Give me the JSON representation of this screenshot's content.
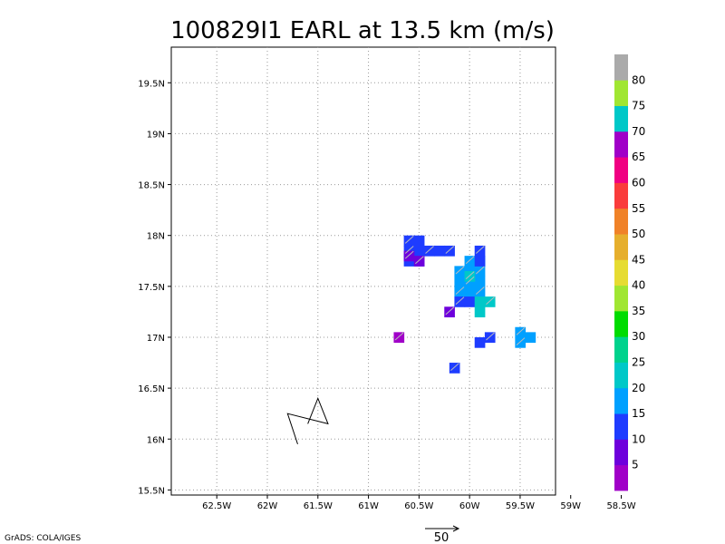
{
  "chart_data": {
    "type": "heatmap",
    "title": "100829I1 EARL at 13.5 km (m/s)",
    "x_ticks": [
      "62.5W",
      "62W",
      "61.5W",
      "61W",
      "60.5W",
      "60W",
      "59.5W",
      "59W",
      "58.5W"
    ],
    "y_ticks": [
      "19.5N",
      "19N",
      "18.5N",
      "18N",
      "17.5N",
      "17N",
      "16.5N",
      "16N",
      "15.5N"
    ],
    "x_values": [
      -62.5,
      -62,
      -61.5,
      -61,
      -60.5,
      -60,
      -59.5,
      -59,
      -58.5
    ],
    "y_values": [
      19.5,
      19,
      18.5,
      18,
      17.5,
      17,
      16.5,
      16,
      15.5
    ],
    "xlim": [
      -62.95,
      -59.15
    ],
    "ylim": [
      15.45,
      19.85
    ],
    "grid": true,
    "colorbar": {
      "labels": [
        "5",
        "10",
        "15",
        "20",
        "25",
        "30",
        "35",
        "40",
        "45",
        "50",
        "55",
        "60",
        "65",
        "70",
        "75",
        "80"
      ],
      "colors": [
        "#a000c8",
        "#6e00dc",
        "#1e3cff",
        "#00a0ff",
        "#00c8c8",
        "#00d28c",
        "#00dc00",
        "#a0e632",
        "#e6dc32",
        "#e6af2d",
        "#f08228",
        "#fa3c3c",
        "#f00082",
        "#a000c8",
        "#00c8c8",
        "#a0e632",
        "#aaaaaa"
      ]
    },
    "regions": [
      {
        "name": "north-west-cluster",
        "color_index": 2,
        "cells": [
          [
            -60.6,
            17.95
          ],
          [
            -60.5,
            17.95
          ],
          [
            -60.6,
            17.85
          ],
          [
            -60.5,
            17.85
          ],
          [
            -60.4,
            17.85
          ],
          [
            -60.3,
            17.85
          ],
          [
            -60.2,
            17.85
          ],
          [
            -60.6,
            17.75
          ],
          [
            -60.5,
            17.75
          ]
        ]
      },
      {
        "name": "north-west-core",
        "color_index": 1,
        "cells": [
          [
            -60.6,
            17.8
          ],
          [
            -60.5,
            17.75
          ]
        ]
      },
      {
        "name": "central-band",
        "color_index": 3,
        "cells": [
          [
            -60.0,
            17.75
          ],
          [
            -59.9,
            17.75
          ],
          [
            -60.1,
            17.65
          ],
          [
            -60.0,
            17.65
          ],
          [
            -59.9,
            17.65
          ],
          [
            -60.1,
            17.55
          ],
          [
            -60.0,
            17.55
          ],
          [
            -59.9,
            17.55
          ],
          [
            -60.1,
            17.45
          ],
          [
            -60.0,
            17.45
          ],
          [
            -59.9,
            17.45
          ]
        ]
      },
      {
        "name": "central-band-edge",
        "color_index": 2,
        "cells": [
          [
            -59.9,
            17.85
          ],
          [
            -59.9,
            17.75
          ],
          [
            -60.1,
            17.35
          ],
          [
            -60.0,
            17.35
          ]
        ]
      },
      {
        "name": "central-band-cyan",
        "color_index": 4,
        "cells": [
          [
            -60.0,
            17.6
          ],
          [
            -59.9,
            17.35
          ],
          [
            -59.8,
            17.35
          ],
          [
            -59.9,
            17.25
          ]
        ]
      },
      {
        "name": "small-purple-north",
        "color_index": 1,
        "cells": [
          [
            -60.2,
            17.25
          ]
        ]
      },
      {
        "name": "west-purple",
        "color_index": 0,
        "cells": [
          [
            -60.7,
            17.0
          ]
        ]
      },
      {
        "name": "east-blue",
        "color_index": 2,
        "cells": [
          [
            -59.8,
            17.0
          ],
          [
            -59.9,
            16.95
          ]
        ]
      },
      {
        "name": "east-cyan",
        "color_index": 3,
        "cells": [
          [
            -59.5,
            17.05
          ],
          [
            -59.4,
            17.0
          ],
          [
            -59.5,
            16.95
          ]
        ]
      },
      {
        "name": "south-blue",
        "color_index": 2,
        "cells": [
          [
            -60.15,
            16.7
          ]
        ]
      }
    ],
    "track": [
      [
        -61.6,
        16.15
      ],
      [
        -61.5,
        16.4
      ],
      [
        -61.4,
        16.15
      ],
      [
        -61.8,
        16.25
      ],
      [
        -61.7,
        15.95
      ]
    ],
    "reference_vector": {
      "label": "50"
    }
  },
  "credit": "GrADS: COLA/IGES"
}
